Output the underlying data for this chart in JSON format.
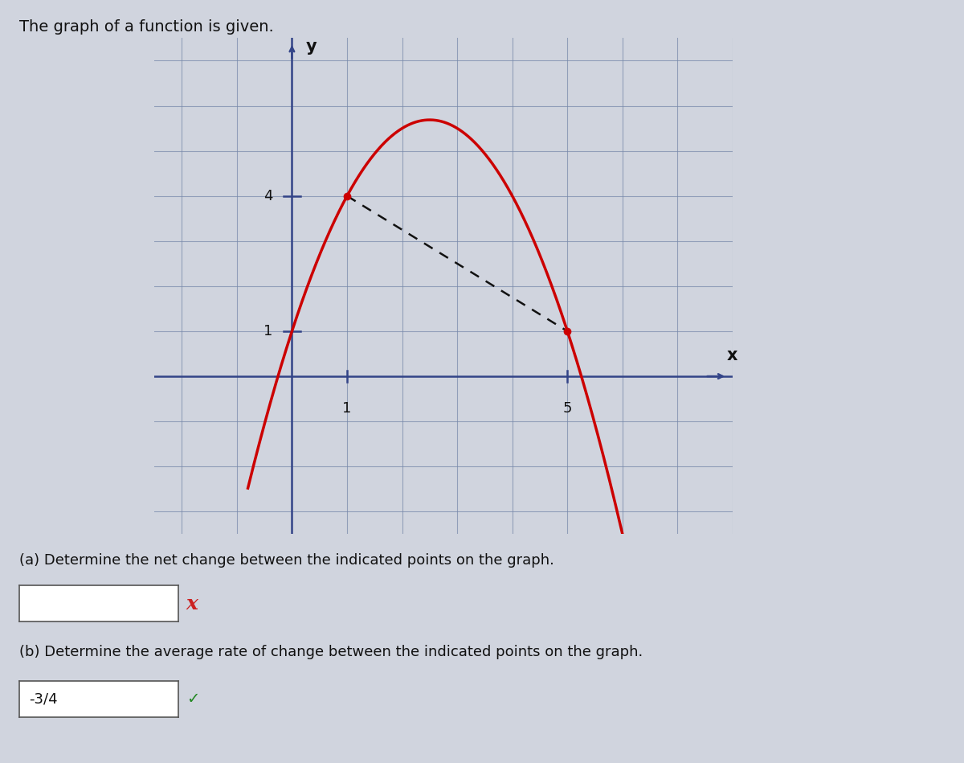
{
  "title": "The graph of a function is given.",
  "point1": [
    1,
    4
  ],
  "point2": [
    5,
    1
  ],
  "curve_color": "#cc0000",
  "dashed_color": "#222222",
  "grid_color": "#7788aa",
  "bg_color": "#d0d4de",
  "axis_color": "#334488",
  "text_color": "#111111",
  "xlabel": "x",
  "ylabel": "y",
  "xlim": [
    -2.5,
    8.0
  ],
  "ylim": [
    -3.5,
    7.5
  ],
  "xticks": [
    1,
    5
  ],
  "yticks": [
    1,
    4
  ],
  "part_a_text": "(a) Determine the net change between the indicated points on the graph.",
  "part_b_text": "(b) Determine the average rate of change between the indicated points on the graph.",
  "answer_b": "-3/4",
  "a_coef": -0.75,
  "b_coef": 3.75,
  "c_coef": 1.0
}
